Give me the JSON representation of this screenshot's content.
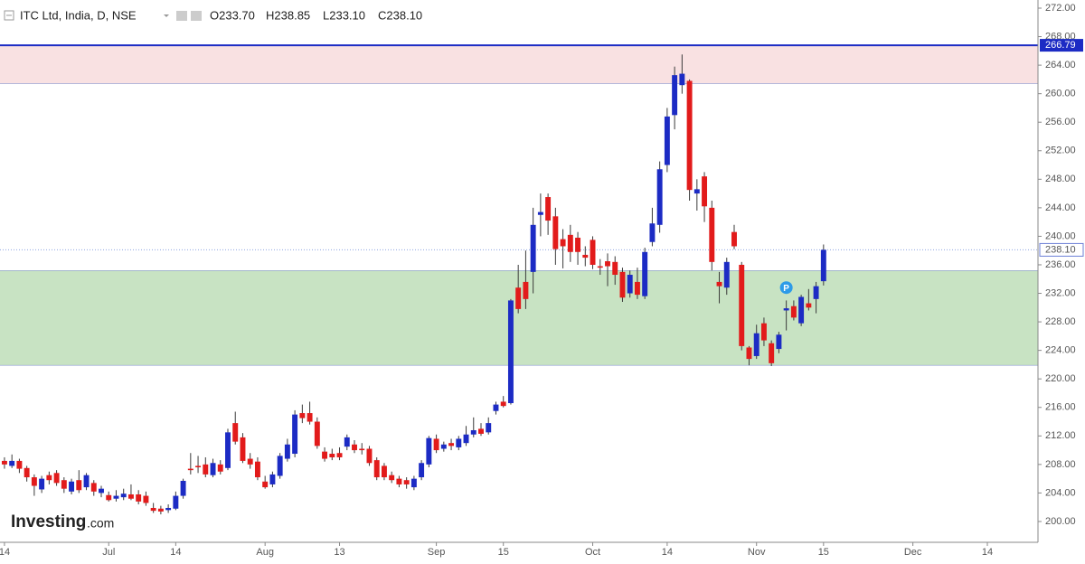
{
  "chart_data": {
    "type": "candlestick",
    "title": "ITC Ltd, India, D, NSE",
    "header_values": [
      "O233.70",
      "H238.85",
      "L233.10",
      "C238.10"
    ],
    "up_color": "#1c2bc4",
    "down_color": "#e21b1b",
    "xlim": [
      -0.6,
      138.8
    ],
    "ylim": [
      197.08,
      273.14
    ],
    "xticks": [
      {
        "value": 0,
        "label": "14"
      },
      {
        "value": 14,
        "label": "Jul"
      },
      {
        "value": 23,
        "label": "14"
      },
      {
        "value": 35,
        "label": "Aug"
      },
      {
        "value": 45,
        "label": "13"
      },
      {
        "value": 58,
        "label": "Sep"
      },
      {
        "value": 67,
        "label": "15"
      },
      {
        "value": 79,
        "label": "Oct"
      },
      {
        "value": 89,
        "label": "14"
      },
      {
        "value": 101,
        "label": "Nov"
      },
      {
        "value": 110,
        "label": "15"
      },
      {
        "value": 122,
        "label": "Dec"
      },
      {
        "value": 132,
        "label": "14"
      }
    ],
    "yticks": [
      {
        "value": 200,
        "label": "200.00"
      },
      {
        "value": 204,
        "label": "204.00"
      },
      {
        "value": 208,
        "label": "208.00"
      },
      {
        "value": 212,
        "label": "212.00"
      },
      {
        "value": 216,
        "label": "216.00"
      },
      {
        "value": 220,
        "label": "220.00"
      },
      {
        "value": 224,
        "label": "224.00"
      },
      {
        "value": 228,
        "label": "228.00"
      },
      {
        "value": 232,
        "label": "232.00"
      },
      {
        "value": 236,
        "label": "236.00"
      },
      {
        "value": 240,
        "label": "240.00"
      },
      {
        "value": 244,
        "label": "244.00"
      },
      {
        "value": 248,
        "label": "248.00"
      },
      {
        "value": 252,
        "label": "252.00"
      },
      {
        "value": 256,
        "label": "256.00"
      },
      {
        "value": 260,
        "label": "260.00"
      },
      {
        "value": 264,
        "label": "264.00"
      },
      {
        "value": 268,
        "label": "268.00"
      },
      {
        "value": 272,
        "label": "272.00"
      }
    ],
    "zones": [
      {
        "from": 261.4,
        "to": 266.79,
        "color": "#f9e1e2"
      },
      {
        "from": 221.9,
        "to": 235.2,
        "color": "#c8e3c3"
      }
    ],
    "level_line": {
      "value": 266.79,
      "color": "#1c2bc4"
    },
    "last_price": {
      "value": 238.1,
      "label": "238.10"
    },
    "markers": [
      {
        "x": 105,
        "y": 232.8,
        "label": "P"
      }
    ],
    "watermark": [
      "Investing",
      ".com"
    ],
    "x": [
      0,
      1,
      2,
      3,
      4,
      5,
      6,
      7,
      8,
      9,
      10,
      11,
      12,
      13,
      14,
      15,
      16,
      17,
      18,
      19,
      20,
      21,
      22,
      23,
      24,
      25,
      26,
      27,
      28,
      29,
      30,
      31,
      32,
      33,
      34,
      35,
      36,
      37,
      38,
      39,
      40,
      41,
      42,
      43,
      44,
      45,
      46,
      47,
      48,
      49,
      50,
      51,
      52,
      53,
      54,
      55,
      56,
      57,
      58,
      59,
      60,
      61,
      62,
      63,
      64,
      65,
      66,
      67,
      68,
      69,
      70,
      71,
      72,
      73,
      74,
      75,
      76,
      77,
      78,
      79,
      80,
      81,
      82,
      83,
      84,
      85,
      86,
      87,
      88,
      89,
      90,
      91,
      92,
      93,
      94,
      95,
      96,
      97,
      98,
      99,
      100,
      101,
      102,
      103,
      104,
      105,
      106,
      107,
      108,
      109,
      110
    ],
    "ohlc": [
      [
        208.5,
        209.0,
        207.4,
        208.0
      ],
      [
        207.8,
        209.4,
        207.5,
        208.5
      ],
      [
        208.5,
        208.8,
        206.8,
        207.4
      ],
      [
        207.5,
        207.8,
        205.6,
        206.2
      ],
      [
        206.2,
        206.6,
        203.6,
        205.0
      ],
      [
        204.5,
        206.4,
        204.0,
        206.0
      ],
      [
        206.5,
        207.0,
        205.2,
        205.8
      ],
      [
        206.8,
        207.2,
        205.0,
        205.4
      ],
      [
        205.8,
        206.2,
        204.0,
        204.6
      ],
      [
        204.2,
        206.0,
        203.8,
        205.6
      ],
      [
        205.8,
        207.2,
        204.0,
        204.4
      ],
      [
        204.8,
        206.8,
        204.4,
        206.5
      ],
      [
        205.4,
        205.8,
        203.6,
        204.2
      ],
      [
        204.0,
        205.0,
        203.4,
        204.6
      ],
      [
        203.7,
        204.2,
        202.8,
        203.0
      ],
      [
        203.2,
        204.4,
        202.8,
        203.6
      ],
      [
        203.4,
        204.6,
        203.0,
        203.9
      ],
      [
        203.8,
        205.2,
        203.0,
        203.2
      ],
      [
        203.8,
        204.4,
        202.4,
        202.8
      ],
      [
        203.6,
        204.2,
        202.2,
        202.6
      ],
      [
        201.9,
        202.6,
        201.2,
        201.5
      ],
      [
        201.8,
        202.2,
        201.0,
        201.4
      ],
      [
        201.6,
        202.4,
        201.2,
        201.9
      ],
      [
        201.8,
        204.2,
        201.6,
        203.6
      ],
      [
        203.6,
        206.0,
        203.2,
        205.7
      ],
      [
        207.4,
        209.6,
        206.6,
        207.2
      ],
      [
        207.8,
        209.2,
        206.8,
        207.6
      ],
      [
        208.0,
        209.0,
        206.2,
        206.6
      ],
      [
        206.5,
        208.8,
        206.2,
        208.2
      ],
      [
        208.0,
        208.6,
        206.6,
        207.0
      ],
      [
        207.5,
        213.0,
        207.2,
        212.5
      ],
      [
        213.8,
        215.4,
        210.8,
        211.2
      ],
      [
        211.8,
        212.4,
        208.2,
        208.5
      ],
      [
        208.8,
        209.6,
        207.4,
        208.0
      ],
      [
        208.4,
        209.0,
        205.8,
        206.2
      ],
      [
        205.6,
        206.4,
        204.6,
        204.8
      ],
      [
        205.2,
        207.0,
        204.8,
        206.6
      ],
      [
        206.4,
        209.6,
        206.0,
        209.2
      ],
      [
        208.8,
        211.6,
        208.4,
        210.8
      ],
      [
        209.5,
        215.6,
        209.0,
        215.0
      ],
      [
        215.2,
        216.4,
        213.8,
        214.5
      ],
      [
        215.2,
        216.8,
        213.6,
        214.0
      ],
      [
        214.0,
        214.6,
        210.2,
        210.6
      ],
      [
        209.8,
        210.4,
        208.4,
        208.8
      ],
      [
        209.5,
        210.2,
        208.6,
        209.0
      ],
      [
        209.6,
        210.4,
        208.6,
        209.0
      ],
      [
        210.5,
        212.2,
        210.0,
        211.8
      ],
      [
        210.8,
        211.4,
        209.6,
        210.0
      ],
      [
        210.2,
        211.0,
        209.4,
        210.0
      ],
      [
        210.2,
        210.6,
        207.8,
        208.2
      ],
      [
        208.6,
        209.0,
        205.8,
        206.2
      ],
      [
        207.8,
        208.2,
        205.8,
        206.2
      ],
      [
        206.5,
        207.0,
        205.4,
        205.8
      ],
      [
        206.0,
        206.4,
        204.8,
        205.2
      ],
      [
        205.8,
        206.2,
        204.6,
        205.2
      ],
      [
        204.8,
        206.4,
        204.4,
        206.0
      ],
      [
        206.2,
        208.6,
        205.8,
        208.2
      ],
      [
        208.0,
        212.0,
        207.6,
        211.7
      ],
      [
        211.6,
        212.2,
        209.6,
        210.0
      ],
      [
        210.2,
        211.2,
        209.8,
        210.8
      ],
      [
        211.0,
        211.6,
        210.0,
        210.6
      ],
      [
        210.4,
        212.0,
        210.0,
        211.6
      ],
      [
        211.0,
        213.4,
        210.6,
        212.2
      ],
      [
        212.2,
        214.6,
        211.8,
        212.8
      ],
      [
        213.0,
        213.8,
        212.0,
        212.3
      ],
      [
        212.5,
        214.6,
        212.2,
        213.8
      ],
      [
        215.5,
        216.8,
        215.0,
        216.4
      ],
      [
        216.8,
        217.6,
        216.0,
        216.2
      ],
      [
        216.6,
        231.2,
        216.4,
        231.0
      ],
      [
        232.8,
        236.0,
        229.2,
        229.8
      ],
      [
        233.6,
        238.0,
        229.8,
        231.2
      ],
      [
        235.0,
        244.0,
        232.0,
        241.6
      ],
      [
        243.0,
        246.0,
        240.0,
        243.4
      ],
      [
        245.5,
        246.0,
        240.2,
        242.2
      ],
      [
        242.8,
        244.0,
        236.0,
        238.2
      ],
      [
        239.6,
        241.0,
        235.5,
        238.6
      ],
      [
        240.2,
        241.6,
        236.4,
        237.8
      ],
      [
        239.8,
        240.6,
        236.0,
        237.8
      ],
      [
        237.4,
        238.6,
        235.8,
        237.0
      ],
      [
        239.5,
        240.0,
        235.4,
        236.0
      ],
      [
        235.8,
        236.8,
        234.6,
        235.6
      ],
      [
        236.5,
        237.6,
        233.0,
        235.8
      ],
      [
        236.4,
        237.2,
        233.2,
        234.6
      ],
      [
        235.0,
        235.6,
        230.8,
        231.4
      ],
      [
        232.0,
        235.2,
        231.4,
        234.6
      ],
      [
        233.6,
        235.6,
        231.2,
        231.8
      ],
      [
        231.6,
        238.4,
        231.2,
        237.8
      ],
      [
        239.2,
        244.0,
        238.6,
        241.8
      ],
      [
        241.6,
        250.5,
        240.5,
        249.4
      ],
      [
        250.0,
        258.0,
        249.0,
        256.8
      ],
      [
        257.0,
        263.8,
        255.0,
        262.6
      ],
      [
        261.2,
        265.5,
        260.0,
        262.8
      ],
      [
        261.8,
        262.0,
        245.0,
        246.5
      ],
      [
        246.0,
        248.0,
        243.6,
        246.6
      ],
      [
        248.4,
        249.0,
        242.0,
        244.2
      ],
      [
        244.0,
        245.0,
        235.2,
        236.4
      ],
      [
        233.6,
        235.0,
        230.6,
        233.0
      ],
      [
        232.8,
        237.0,
        231.8,
        236.4
      ],
      [
        240.6,
        241.6,
        238.2,
        238.6
      ],
      [
        236.0,
        236.4,
        224.0,
        224.6
      ],
      [
        224.4,
        224.6,
        221.9,
        222.8
      ],
      [
        223.2,
        227.6,
        222.8,
        226.4
      ],
      [
        227.8,
        228.6,
        224.6,
        225.4
      ],
      [
        225.0,
        225.4,
        221.8,
        222.2
      ],
      [
        224.2,
        226.6,
        223.6,
        226.2
      ],
      [
        229.6,
        231.0,
        226.8,
        229.9
      ],
      [
        230.2,
        231.0,
        228.2,
        228.6
      ],
      [
        227.8,
        231.8,
        227.4,
        231.5
      ],
      [
        230.6,
        232.6,
        229.6,
        230.0
      ],
      [
        231.2,
        233.6,
        229.2,
        233.0
      ],
      [
        233.7,
        238.85,
        233.1,
        238.1
      ]
    ]
  }
}
